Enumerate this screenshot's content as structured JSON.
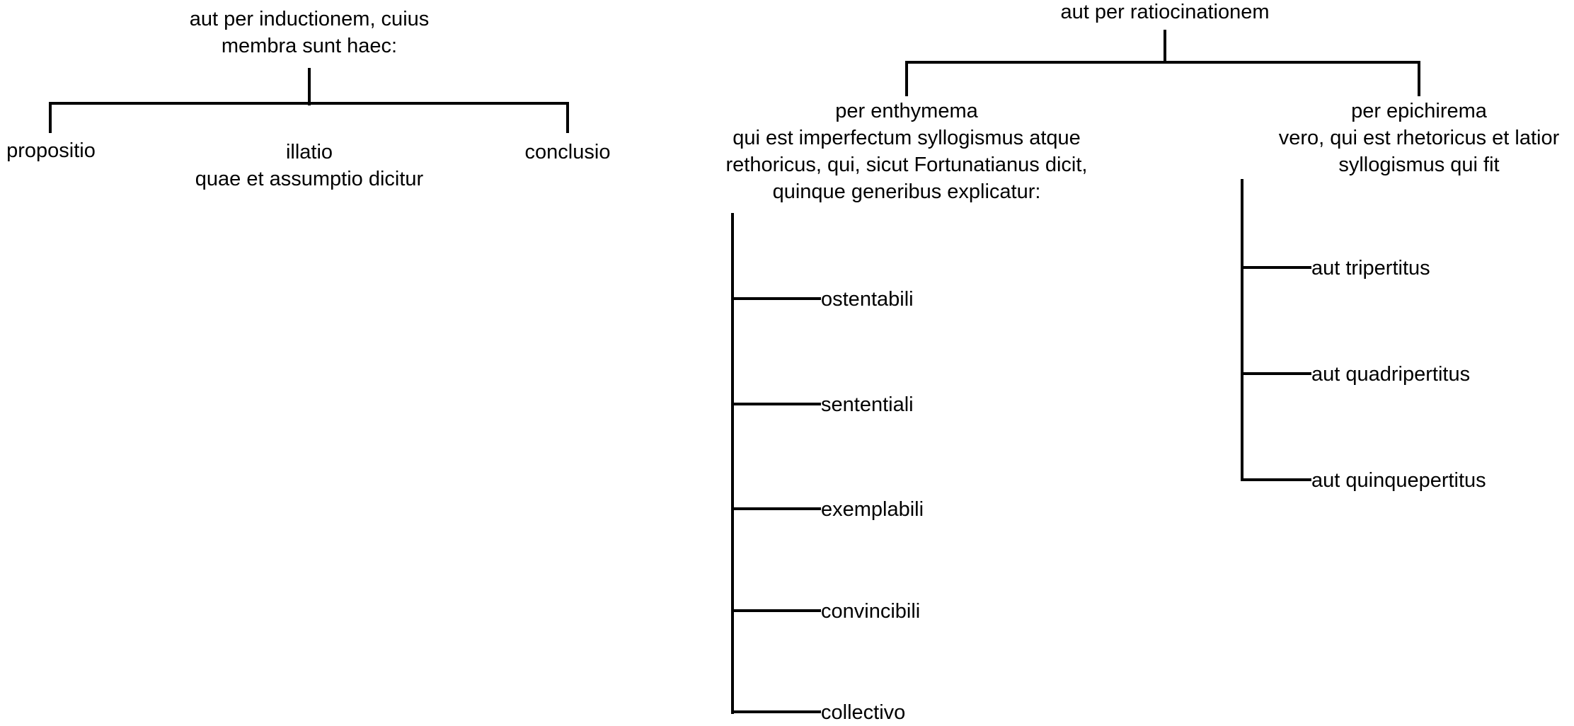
{
  "induction": {
    "title_line1": "aut per inductionem, cuius",
    "title_line2": "membra sunt haec:",
    "children": {
      "propositio": "propositio",
      "illatio": "illatio",
      "illatio_note": "quae et assumptio dicitur",
      "conclusio": "conclusio"
    }
  },
  "ratiocination": {
    "title": "aut per ratiocinationem",
    "enthymema": {
      "line1": "per enthymema",
      "line2": "qui est imperfectum syllogismus atque",
      "line3": "rethoricus, qui, sicut Fortunatianus dicit,",
      "line4": "quinque generibus explicatur:",
      "items": [
        "ostentabili",
        "sententiali",
        "exemplabili",
        "convincibili",
        "collectivo"
      ]
    },
    "epichirema": {
      "line1": "per epichirema",
      "line2": "vero, qui est rhetoricus et latior",
      "line3": "syllogismus qui fit",
      "items": [
        "aut tripertitus",
        "aut quadripertitus",
        "aut quinquepertitus"
      ]
    }
  }
}
